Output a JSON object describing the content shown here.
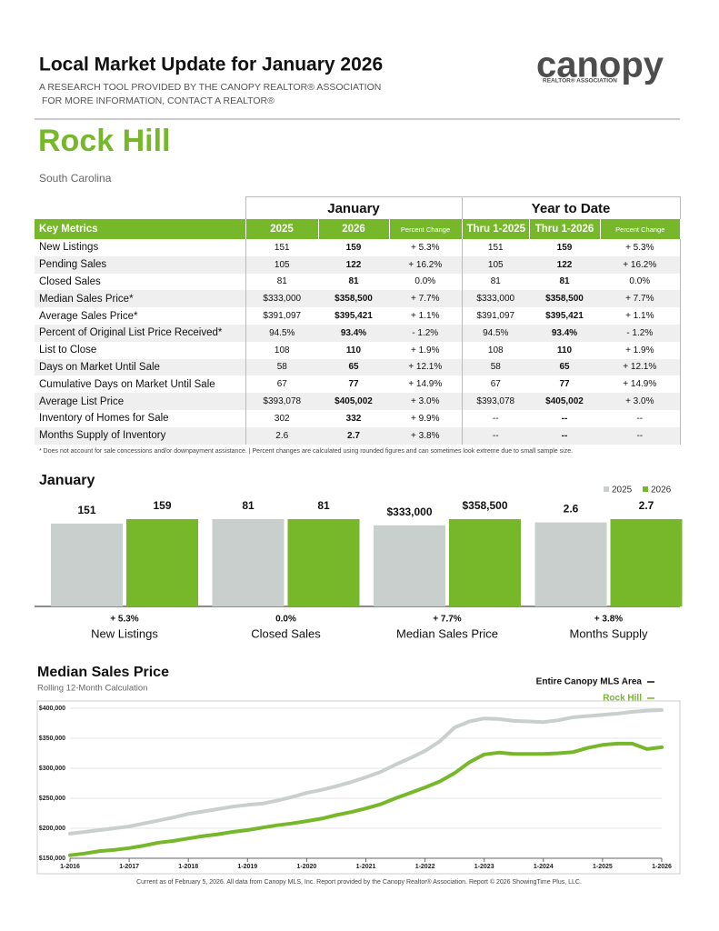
{
  "header": {
    "title": "Local Market Update for January 2026",
    "subtitle": [
      "A RESEARCH TOOL PROVIDED BY THE CANOPY REALTOR® ASSOCIATION",
      "FOR MORE INFORMATION, CONTACT A REALTOR®"
    ],
    "logo": "canopy",
    "logo_tagline": "REALTOR® ASSOCIATION"
  },
  "location": {
    "name": "Rock Hill",
    "state": "South Carolina"
  },
  "table": {
    "groups": [
      "January",
      "Year to Date"
    ],
    "columns": [
      "Key Metrics",
      "2025",
      "2026",
      "Percent Change",
      "Thru 1-2025",
      "Thru 1-2026",
      "Percent Change"
    ],
    "rows": [
      [
        "New Listings",
        "151",
        "159",
        "+ 5.3%",
        "151",
        "159",
        "+ 5.3%"
      ],
      [
        "Pending Sales",
        "105",
        "122",
        "+ 16.2%",
        "105",
        "122",
        "+ 16.2%"
      ],
      [
        "Closed Sales",
        "81",
        "81",
        "0.0%",
        "81",
        "81",
        "0.0%"
      ],
      [
        "Median Sales Price*",
        "$333,000",
        "$358,500",
        "+ 7.7%",
        "$333,000",
        "$358,500",
        "+ 7.7%"
      ],
      [
        "Average Sales Price*",
        "$391,097",
        "$395,421",
        "+ 1.1%",
        "$391,097",
        "$395,421",
        "+ 1.1%"
      ],
      [
        "Percent of Original List Price Received*",
        "94.5%",
        "93.4%",
        "- 1.2%",
        "94.5%",
        "93.4%",
        "- 1.2%"
      ],
      [
        "List to Close",
        "108",
        "110",
        "+ 1.9%",
        "108",
        "110",
        "+ 1.9%"
      ],
      [
        "Days on Market Until Sale",
        "58",
        "65",
        "+ 12.1%",
        "58",
        "65",
        "+ 12.1%"
      ],
      [
        "Cumulative Days on Market Until Sale",
        "67",
        "77",
        "+ 14.9%",
        "67",
        "77",
        "+ 14.9%"
      ],
      [
        "Average List Price",
        "$393,078",
        "$405,002",
        "+ 3.0%",
        "$393,078",
        "$405,002",
        "+ 3.0%"
      ],
      [
        "Inventory of Homes for Sale",
        "302",
        "332",
        "+ 9.9%",
        "--",
        "--",
        "--"
      ],
      [
        "Months Supply of Inventory",
        "2.6",
        "2.7",
        "+ 3.8%",
        "--",
        "--",
        "--"
      ]
    ]
  },
  "footnote": "* Does not account for sale concessions and/or downpayment assistance.  |  Percent changes are calculated using rounded figures and can sometimes look extreme due to small sample size.",
  "chart_data": [
    {
      "type": "bar",
      "title": "January",
      "categories": [
        "New Listings",
        "Closed Sales",
        "Median Sales Price",
        "Months Supply"
      ],
      "series": [
        {
          "name": "2025",
          "color": "#c8cfcd",
          "values": [
            151,
            81,
            333000,
            2.6
          ],
          "value_labels": [
            "151",
            "81",
            "$333,000",
            "2.6"
          ]
        },
        {
          "name": "2026",
          "color": "#76b82a",
          "values": [
            159,
            81,
            358500,
            2.7
          ],
          "value_labels": [
            "159",
            "81",
            "$358,500",
            "2.7"
          ]
        }
      ],
      "changes": [
        "+ 5.3%",
        "0.0%",
        "+ 7.7%",
        "+ 3.8%"
      ],
      "legend": "upper right"
    },
    {
      "type": "line",
      "title": "Median Sales Price",
      "subtitle": "Rolling 12-Month Calculation",
      "x": [
        2016,
        2016.25,
        2016.5,
        2016.75,
        2017,
        2017.25,
        2017.5,
        2017.75,
        2018,
        2018.25,
        2018.5,
        2018.75,
        2019,
        2019.25,
        2019.5,
        2019.75,
        2020,
        2020.25,
        2020.5,
        2020.75,
        2021,
        2021.25,
        2021.5,
        2021.75,
        2022,
        2022.25,
        2022.5,
        2022.75,
        2023,
        2023.25,
        2023.5,
        2023.75,
        2024,
        2024.25,
        2024.5,
        2024.75,
        2025,
        2025.25,
        2025.5,
        2025.75,
        2026
      ],
      "series": [
        {
          "name": "Entire Canopy MLS Area",
          "color": "#c9cfcc",
          "values": [
            191000,
            194000,
            197000,
            200000,
            203000,
            208000,
            213000,
            218000,
            224000,
            228000,
            232000,
            236000,
            239000,
            241000,
            246000,
            252000,
            259000,
            264000,
            270000,
            277000,
            285000,
            294000,
            306000,
            317000,
            329000,
            345000,
            368000,
            378000,
            383000,
            382000,
            379000,
            378000,
            377000,
            380000,
            385000,
            387000,
            389000,
            391000,
            394000,
            396000,
            397000
          ]
        },
        {
          "name": "Rock Hill",
          "color": "#76b82a",
          "values": [
            155000,
            158000,
            162000,
            164000,
            167000,
            171000,
            176000,
            179000,
            183000,
            187000,
            190000,
            194000,
            197000,
            201000,
            205000,
            208000,
            212000,
            216000,
            222000,
            227000,
            233000,
            240000,
            250000,
            259000,
            268000,
            278000,
            292000,
            310000,
            323000,
            326000,
            324000,
            324000,
            324000,
            325000,
            327000,
            334000,
            339000,
            341000,
            341000,
            332000,
            335000
          ]
        }
      ],
      "xlim": [
        2016,
        2026
      ],
      "xticks": [
        {
          "value": 2016,
          "label": "1-2016"
        },
        {
          "value": 2017,
          "label": "1-2017"
        },
        {
          "value": 2018,
          "label": "1-2018"
        },
        {
          "value": 2019,
          "label": "1-2019"
        },
        {
          "value": 2020,
          "label": "1-2020"
        },
        {
          "value": 2021,
          "label": "1-2021"
        },
        {
          "value": 2022,
          "label": "1-2022"
        },
        {
          "value": 2023,
          "label": "1-2023"
        },
        {
          "value": 2024,
          "label": "1-2024"
        },
        {
          "value": 2025,
          "label": "1-2025"
        },
        {
          "value": 2026,
          "label": "1-2026"
        }
      ],
      "ylim": [
        150000,
        400000
      ],
      "yticks": [
        {
          "value": 150000,
          "label": "$150,000"
        },
        {
          "value": 200000,
          "label": "$200,000"
        },
        {
          "value": 250000,
          "label": "$250,000"
        },
        {
          "value": 300000,
          "label": "$300,000"
        },
        {
          "value": 350000,
          "label": "$350,000"
        },
        {
          "value": 400000,
          "label": "$400,000"
        }
      ],
      "legend": "upper right"
    }
  ],
  "footer": "Current as of February 5, 2026. All data from Canopy MLS, Inc. Report provided by the Canopy Realtor® Association. Report © 2026 ShowingTime Plus, LLC."
}
